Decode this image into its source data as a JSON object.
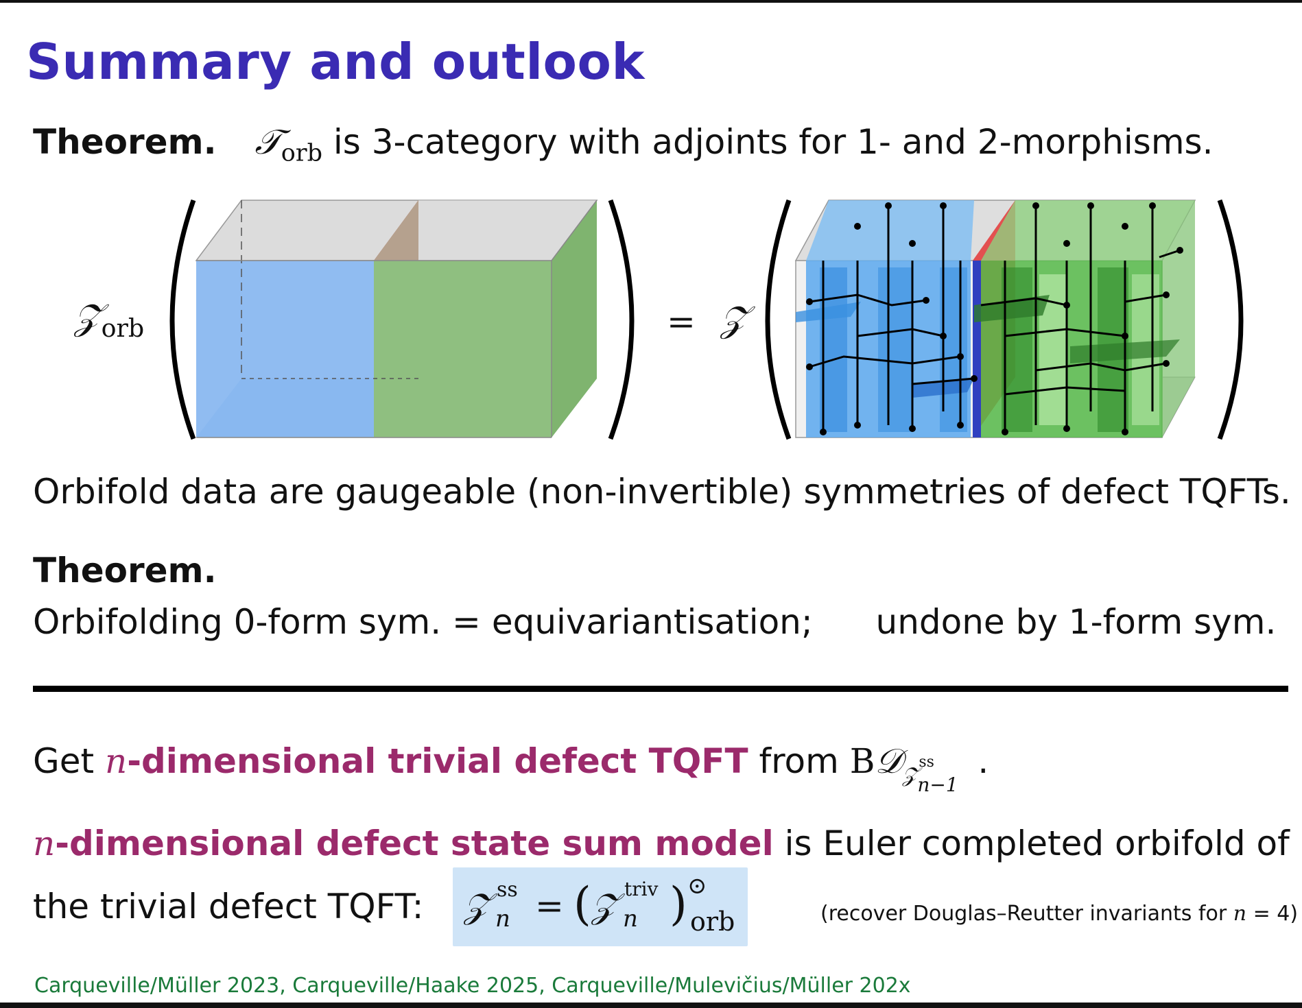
{
  "slide": {
    "title": "Summary and outlook",
    "theorem1": {
      "label": "Theorem.",
      "symbol": "𝒯",
      "symbol_sub": "orb",
      "text": "is 3-category with adjoints for 1- and 2-morphisms."
    },
    "figure": {
      "lhs_symbol": "𝒵",
      "lhs_sub": "orb",
      "equals": "=",
      "rhs_symbol": "𝒵"
    },
    "orbifold_line": "Orbifold data are gaugeable (non-invertible) symmetries of defect TQFTs.",
    "theorem2": {
      "label": "Theorem.",
      "text_a": "Orbifolding 0-form sym. = equivariantisation;",
      "text_b": "undone by 1-form sym."
    },
    "get_line": {
      "prefix": "Get",
      "n": "n",
      "highlight": "-dimensional trivial defect TQFT",
      "from": "from",
      "bd": "B",
      "d_symbol": "𝒟",
      "z_symbol": "𝒵",
      "z_sup": "ss",
      "z_sub": "n−1",
      "end": "."
    },
    "statesum_line": {
      "n": "n",
      "highlight": "-dimensional defect state sum model",
      "rest": "is Euler completed orbifold of"
    },
    "trivial_line": {
      "text": "the trivial defect TQFT:",
      "formula_lhs": "𝒵",
      "lhs_sup": "ss",
      "lhs_sub": "n",
      "formula_eq": "=",
      "formula_inner": "𝒵",
      "inner_sup": "triv",
      "inner_sub": "n",
      "outer_sup": "⊙",
      "outer_sub": "orb",
      "note_prefix": "(recover Douglas–Reutter invariants for",
      "note_n": "n",
      "note_suffix": "= 4)"
    },
    "citation": "Carqueville/Müller 2023, Carqueville/Haake 2025, Carqueville/Mulevičius/Müller 202x"
  },
  "colors": {
    "title": "#3a2bb3",
    "accent": "#9b2a6b",
    "citation": "#1a7a3a",
    "box": "#cfe4f7",
    "blue_region": "#8ab8f0",
    "green_region": "#8fbf80",
    "red_region": "#d96a6a"
  }
}
